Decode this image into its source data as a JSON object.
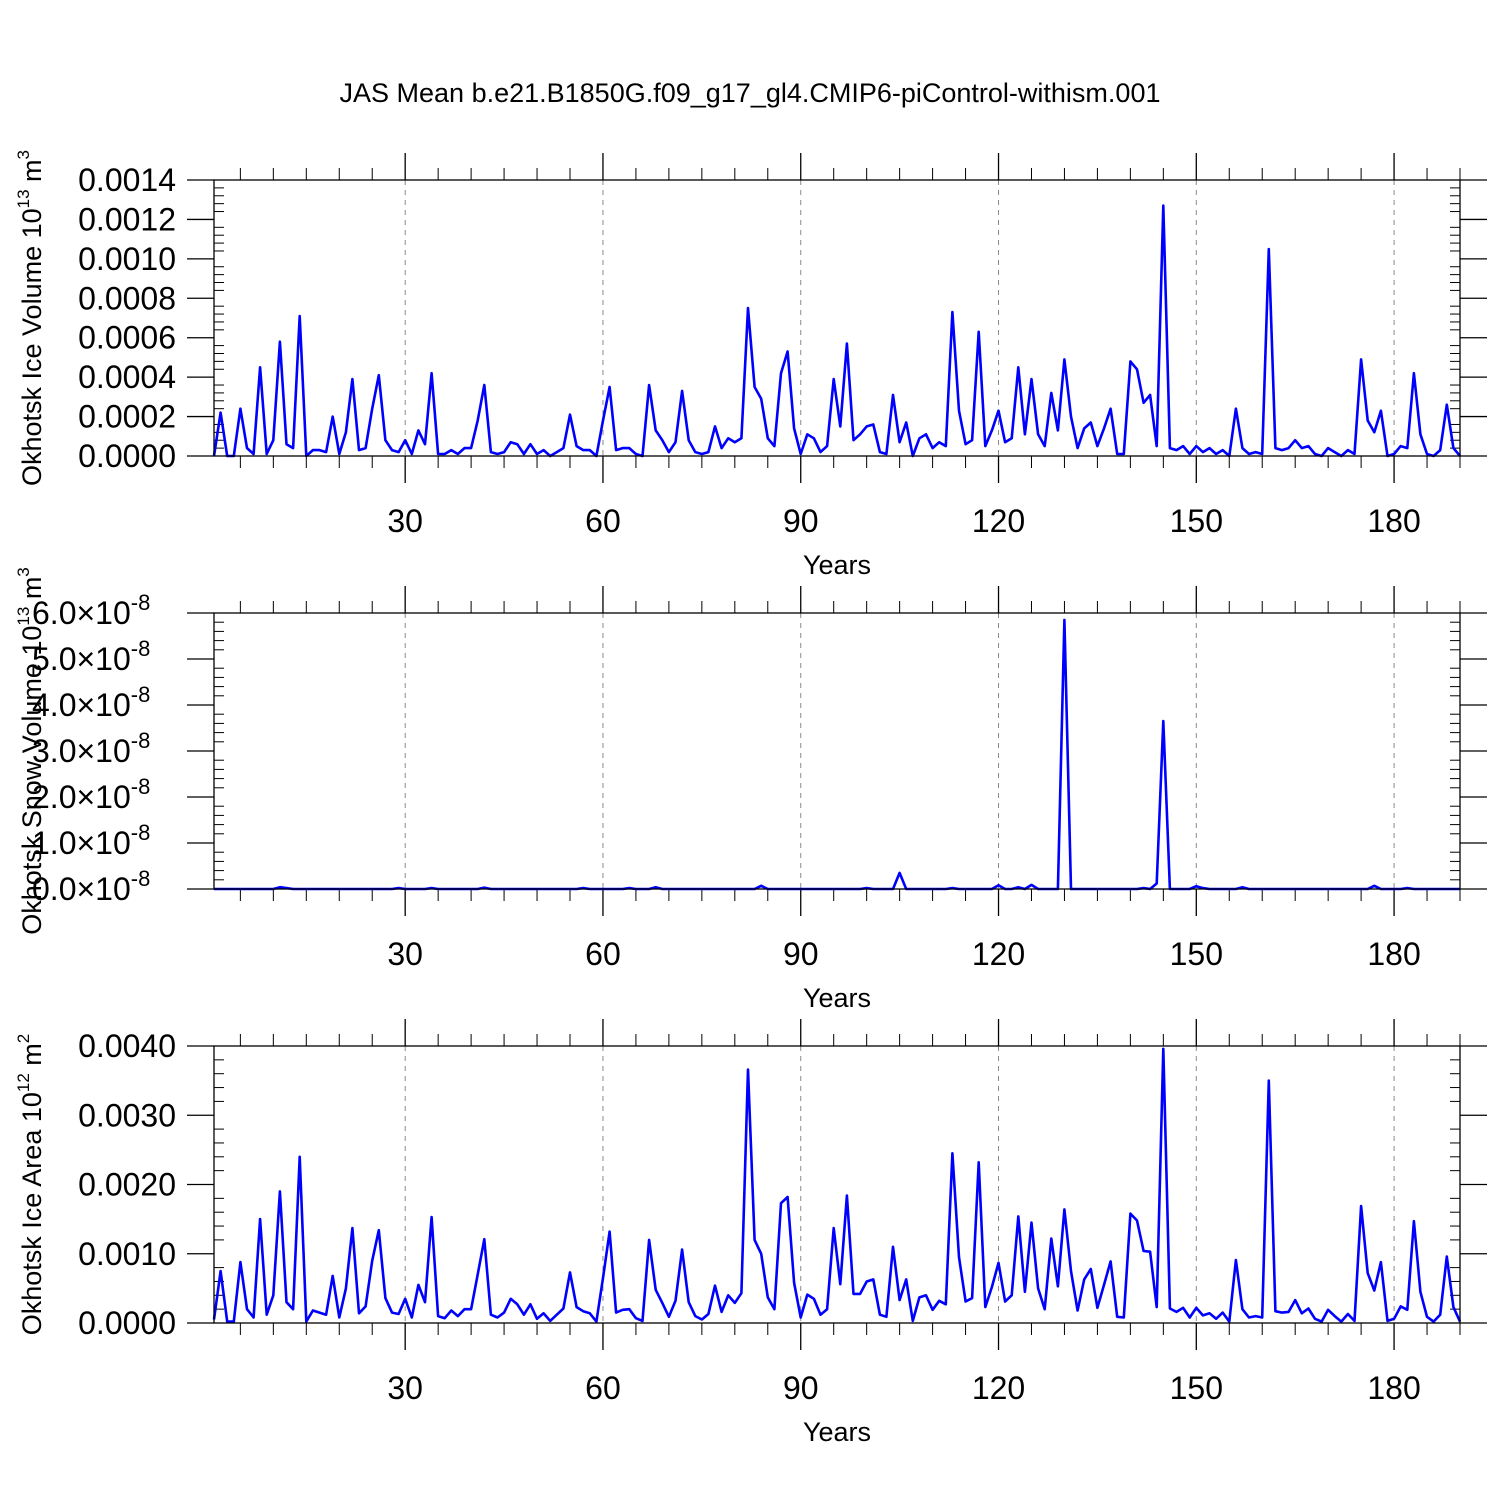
{
  "title": "JAS Mean b.e21.B1850G.f09_g17_gl4.CMIP6-piControl-withism.001",
  "colors": {
    "line": "#0000ff",
    "axis": "#000000",
    "grid": "#8a8a8a"
  },
  "chart_data": [
    {
      "type": "line",
      "ylabel": "Okhotsk Ice Volume 10",
      "ylabel_exp": "13",
      "ylabel_unit": "m",
      "ylabel_unit_exp": "3",
      "xlabel": "Years",
      "xlim": [
        1,
        190
      ],
      "ylim": [
        0,
        0.0014
      ],
      "x_ticks": [
        30,
        60,
        90,
        120,
        150,
        180
      ],
      "x_tick_labels": [
        "30",
        "60",
        "90",
        "120",
        "150",
        "180"
      ],
      "y_ticks": [
        0,
        0.0002,
        0.0004,
        0.0006,
        0.0008,
        0.001,
        0.0012,
        0.0014
      ],
      "y_tick_labels": [
        "0.0000",
        "0.0002",
        "0.0004",
        "0.0006",
        "0.0008",
        "0.0010",
        "0.0012",
        "0.0014"
      ],
      "x_grid": true,
      "series": [
        {
          "values": [
            0.0,
            0.00022,
            0.0,
            0.0,
            0.00024,
            4e-05,
            1e-05,
            0.00045,
            1e-05,
            8e-05,
            0.00058,
            6e-05,
            4e-05,
            0.00071,
            0.0,
            3e-05,
            3e-05,
            2e-05,
            0.0002,
            1e-05,
            0.00012,
            0.00039,
            3e-05,
            4e-05,
            0.00024,
            0.00041,
            8e-05,
            3e-05,
            2e-05,
            8e-05,
            1e-05,
            0.00013,
            6e-05,
            0.00042,
            1e-05,
            1e-05,
            3e-05,
            1e-05,
            4e-05,
            4e-05,
            0.00018,
            0.00036,
            2e-05,
            1e-05,
            2e-05,
            7e-05,
            6e-05,
            1e-05,
            6e-05,
            1e-05,
            3e-05,
            0.0,
            2e-05,
            4e-05,
            0.00021,
            5e-05,
            3e-05,
            3e-05,
            0.0,
            0.00018,
            0.00035,
            3e-05,
            4e-05,
            4e-05,
            1e-05,
            0.0,
            0.00036,
            0.00013,
            8e-05,
            2e-05,
            7e-05,
            0.00033,
            8e-05,
            2e-05,
            1e-05,
            2e-05,
            0.00015,
            4e-05,
            9e-05,
            7e-05,
            9e-05,
            0.00075,
            0.00035,
            0.00029,
            9e-05,
            5e-05,
            0.00042,
            0.00053,
            0.00014,
            1e-05,
            0.00011,
            9e-05,
            2e-05,
            5e-05,
            0.00039,
            0.00015,
            0.00057,
            8e-05,
            0.00011,
            0.00015,
            0.00016,
            2e-05,
            1e-05,
            0.00031,
            7e-05,
            0.00017,
            0.0,
            9e-05,
            0.00011,
            4e-05,
            7e-05,
            5e-05,
            0.00073,
            0.00023,
            6e-05,
            8e-05,
            0.00063,
            5e-05,
            0.00013,
            0.00023,
            7e-05,
            9e-05,
            0.00045,
            0.00011,
            0.00039,
            0.00011,
            5e-05,
            0.00032,
            0.00013,
            0.00049,
            0.0002,
            4e-05,
            0.00014,
            0.00017,
            5e-05,
            0.00014,
            0.00024,
            1e-05,
            1e-05,
            0.00048,
            0.00044,
            0.00027,
            0.00031,
            5e-05,
            0.00127,
            4e-05,
            3e-05,
            5e-05,
            1e-05,
            5e-05,
            2e-05,
            4e-05,
            1e-05,
            3e-05,
            0.0,
            0.00024,
            4e-05,
            1e-05,
            2e-05,
            1e-05,
            0.00105,
            4e-05,
            3e-05,
            4e-05,
            8e-05,
            4e-05,
            5e-05,
            1e-05,
            0.0,
            4e-05,
            2e-05,
            0.0,
            3e-05,
            1e-05,
            0.00049,
            0.00018,
            0.00012,
            0.00023,
            0.0,
            1e-05,
            5e-05,
            4e-05,
            0.00042,
            0.00011,
            1e-05,
            0.0,
            3e-05,
            0.00026,
            4e-05,
            0.0
          ]
        }
      ]
    },
    {
      "type": "line",
      "ylabel": "Okhotsk Snow Volume 10",
      "ylabel_exp": "13",
      "ylabel_unit": "m",
      "ylabel_unit_exp": "3",
      "xlabel": "Years",
      "xlim": [
        1,
        190
      ],
      "ylim": [
        0,
        6e-08
      ],
      "x_ticks": [
        30,
        60,
        90,
        120,
        150,
        180
      ],
      "x_tick_labels": [
        "30",
        "60",
        "90",
        "120",
        "150",
        "180"
      ],
      "y_ticks": [
        0,
        1e-08,
        2e-08,
        3e-08,
        4e-08,
        5e-08,
        6e-08
      ],
      "y_tick_mantissas": [
        "0.0",
        "1.0",
        "2.0",
        "3.0",
        "4.0",
        "5.0",
        "6.0"
      ],
      "y_tick_times": "×10",
      "y_tick_exponent": "-8",
      "x_grid": true,
      "series": [
        {
          "values": [
            0.0,
            0.0,
            0.0,
            0.0,
            0.0,
            0.0,
            0.0,
            0.0,
            0.0,
            0.0,
            4e-10,
            2e-10,
            0.0,
            0.0,
            0.0,
            0.0,
            0.0,
            0.0,
            0.0,
            0.0,
            0.0,
            0.0,
            0.0,
            0.0,
            0.0,
            0.0,
            0.0,
            0.0,
            2e-10,
            0.0,
            0.0,
            0.0,
            0.0,
            2e-10,
            0.0,
            0.0,
            0.0,
            0.0,
            0.0,
            0.0,
            0.0,
            3e-10,
            0.0,
            0.0,
            0.0,
            0.0,
            0.0,
            0.0,
            0.0,
            0.0,
            0.0,
            0.0,
            0.0,
            0.0,
            0.0,
            0.0,
            2e-10,
            0.0,
            0.0,
            0.0,
            0.0,
            0.0,
            0.0,
            2e-10,
            0.0,
            0.0,
            0.0,
            4e-10,
            0.0,
            0.0,
            0.0,
            0.0,
            0.0,
            0.0,
            0.0,
            0.0,
            0.0,
            0.0,
            0.0,
            0.0,
            0.0,
            0.0,
            0.0,
            7e-10,
            0.0,
            0.0,
            0.0,
            0.0,
            0.0,
            0.0,
            0.0,
            0.0,
            0.0,
            0.0,
            0.0,
            0.0,
            0.0,
            0.0,
            0.0,
            2e-10,
            0.0,
            0.0,
            0.0,
            0.0,
            3.5e-09,
            0.0,
            0.0,
            0.0,
            0.0,
            0.0,
            0.0,
            0.0,
            2e-10,
            0.0,
            0.0,
            0.0,
            0.0,
            0.0,
            0.0,
            8e-10,
            0.0,
            0.0,
            4e-10,
            0.0,
            9e-10,
            0.0,
            0.0,
            0.0,
            0.0,
            5.85e-08,
            0.0,
            0.0,
            0.0,
            0.0,
            0.0,
            0.0,
            0.0,
            0.0,
            0.0,
            0.0,
            0.0,
            2e-10,
            0.0,
            1.2e-09,
            3.65e-08,
            0.0,
            0.0,
            0.0,
            0.0,
            6e-10,
            2e-10,
            0.0,
            0.0,
            0.0,
            0.0,
            0.0,
            4e-10,
            0.0,
            0.0,
            0.0,
            0.0,
            0.0,
            0.0,
            0.0,
            0.0,
            0.0,
            0.0,
            0.0,
            0.0,
            0.0,
            0.0,
            0.0,
            0.0,
            0.0,
            0.0,
            0.0,
            7e-10,
            0.0,
            0.0,
            0.0,
            0.0,
            2e-10,
            0.0,
            0.0,
            0.0,
            0.0,
            0.0,
            0.0,
            0.0,
            0.0
          ]
        }
      ]
    },
    {
      "type": "line",
      "ylabel": "Okhotsk Ice Area 10",
      "ylabel_exp": "12",
      "ylabel_unit": "m",
      "ylabel_unit_exp": "2",
      "xlabel": "Years",
      "xlim": [
        1,
        190
      ],
      "ylim": [
        0,
        0.004
      ],
      "x_ticks": [
        30,
        60,
        90,
        120,
        150,
        180
      ],
      "x_tick_labels": [
        "30",
        "60",
        "90",
        "120",
        "150",
        "180"
      ],
      "y_ticks": [
        0,
        0.001,
        0.002,
        0.003,
        0.004
      ],
      "y_tick_labels": [
        "0.0000",
        "0.0010",
        "0.0020",
        "0.0030",
        "0.0040"
      ],
      "x_grid": true,
      "series": [
        {
          "values": [
            5e-05,
            0.00075,
            2e-05,
            2e-05,
            0.00088,
            0.0002,
            8e-05,
            0.0015,
            0.00012,
            0.0004,
            0.0019,
            0.0003,
            0.0002,
            0.0024,
            2e-05,
            0.00018,
            0.00015,
            0.00012,
            0.00068,
            8e-05,
            0.0005,
            0.00137,
            0.00014,
            0.00024,
            0.0009,
            0.00134,
            0.00036,
            0.00015,
            0.00013,
            0.00035,
            8e-05,
            0.00055,
            0.0003,
            0.00153,
            0.0001,
            7e-05,
            0.00018,
            0.0001,
            0.0002,
            0.0002,
            0.0007,
            0.00121,
            0.00012,
            8e-05,
            0.00015,
            0.00035,
            0.00027,
            0.00012,
            0.00027,
            6e-05,
            0.00014,
            3e-05,
            0.00012,
            0.00021,
            0.00073,
            0.00023,
            0.00017,
            0.00014,
            2e-05,
            0.00065,
            0.00132,
            0.00015,
            0.00019,
            0.0002,
            7e-05,
            3e-05,
            0.0012,
            0.00048,
            0.00029,
            9e-05,
            0.00032,
            0.00106,
            0.0003,
            0.0001,
            5e-05,
            0.00013,
            0.00054,
            0.00016,
            0.0004,
            0.00029,
            0.00043,
            0.00366,
            0.0012,
            0.001,
            0.00037,
            0.0002,
            0.00173,
            0.00182,
            0.00058,
            8e-05,
            0.00041,
            0.00035,
            0.00012,
            0.0002,
            0.00137,
            0.00056,
            0.00184,
            0.00042,
            0.00042,
            0.0006,
            0.00063,
            0.00012,
            9e-05,
            0.0011,
            0.00033,
            0.00063,
            3e-05,
            0.00037,
            0.0004,
            0.00019,
            0.00032,
            0.00027,
            0.00245,
            0.00095,
            0.00031,
            0.00036,
            0.00232,
            0.00023,
            0.00052,
            0.00087,
            0.00031,
            0.0004,
            0.00154,
            0.00045,
            0.00145,
            0.0005,
            0.0002,
            0.00122,
            0.00053,
            0.00164,
            0.00075,
            0.00018,
            0.00063,
            0.00078,
            0.00022,
            0.00055,
            0.00089,
            9e-05,
            8e-05,
            0.00158,
            0.00148,
            0.00104,
            0.00103,
            0.00023,
            0.00396,
            0.00021,
            0.00016,
            0.00022,
            8e-05,
            0.00022,
            0.00011,
            0.00014,
            6e-05,
            0.00015,
            2e-05,
            0.00091,
            0.0002,
            8e-05,
            0.0001,
            8e-05,
            0.0035,
            0.00017,
            0.00015,
            0.00016,
            0.00033,
            0.00014,
            0.00021,
            6e-05,
            2e-05,
            0.00019,
            0.0001,
            2e-05,
            0.00013,
            3e-05,
            0.00169,
            0.00072,
            0.00047,
            0.00088,
            3e-05,
            6e-05,
            0.00024,
            0.00019,
            0.00147,
            0.00045,
            9e-05,
            2e-05,
            0.00012,
            0.00096,
            0.00023,
            2e-05
          ]
        }
      ]
    }
  ]
}
